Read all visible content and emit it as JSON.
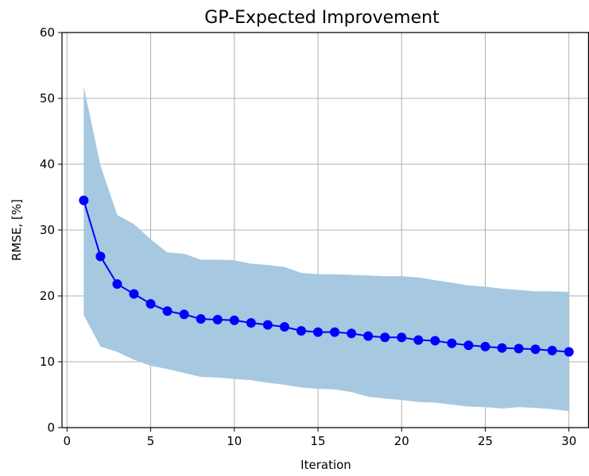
{
  "chart_data": {
    "type": "line",
    "title": "GP-Expected Improvement",
    "xlabel": "Iteration",
    "ylabel": "RMSE, [%]",
    "xlim": [
      -0.3,
      31.2
    ],
    "ylim": [
      0,
      60
    ],
    "xticks": [
      0,
      5,
      10,
      15,
      20,
      25,
      30
    ],
    "yticks": [
      0,
      10,
      20,
      30,
      40,
      50,
      60
    ],
    "grid": true,
    "colors": {
      "line": "#0000ff",
      "band": "#a6c8e0",
      "grid": "#b0b0b0",
      "axis": "#000000"
    },
    "x": [
      1,
      2,
      3,
      4,
      5,
      6,
      7,
      8,
      9,
      10,
      11,
      12,
      13,
      14,
      15,
      16,
      17,
      18,
      19,
      20,
      21,
      22,
      23,
      24,
      25,
      26,
      27,
      28,
      29,
      30
    ],
    "series": [
      {
        "values": [
          34.5,
          26.0,
          21.8,
          20.3,
          18.8,
          17.7,
          17.2,
          16.5,
          16.4,
          16.3,
          15.9,
          15.6,
          15.3,
          14.7,
          14.5,
          14.5,
          14.3,
          13.9,
          13.7,
          13.7,
          13.3,
          13.2,
          12.8,
          12.5,
          12.3,
          12.1,
          12.0,
          11.9,
          11.7,
          11.5
        ],
        "upper": [
          51.8,
          39.8,
          32.3,
          30.9,
          28.6,
          26.6,
          26.4,
          25.5,
          25.5,
          25.4,
          24.9,
          24.7,
          24.4,
          23.5,
          23.3,
          23.3,
          23.2,
          23.1,
          23.0,
          23.0,
          22.8,
          22.4,
          22.0,
          21.6,
          21.4,
          21.1,
          20.9,
          20.7,
          20.7,
          20.6
        ],
        "lower": [
          17.1,
          12.3,
          11.5,
          10.3,
          9.4,
          8.9,
          8.3,
          7.7,
          7.6,
          7.4,
          7.2,
          6.8,
          6.5,
          6.1,
          5.9,
          5.8,
          5.4,
          4.7,
          4.4,
          4.2,
          3.9,
          3.8,
          3.5,
          3.2,
          3.1,
          2.9,
          3.1,
          3.0,
          2.8,
          2.5
        ]
      }
    ]
  }
}
